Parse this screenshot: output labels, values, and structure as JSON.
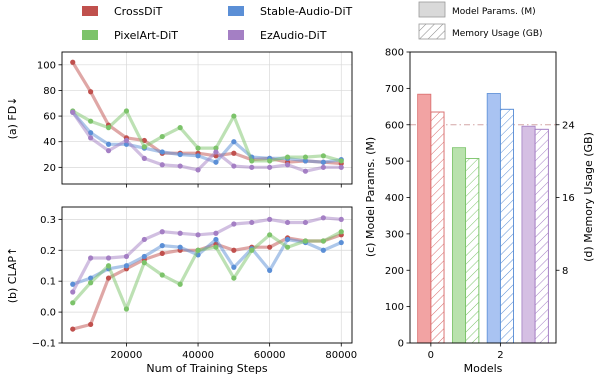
{
  "legend_left": [
    {
      "name": "CrossDiT",
      "color": "#c0504d"
    },
    {
      "name": "Stable-Audio-DiT",
      "color": "#5b8fd6"
    },
    {
      "name": "PixelArt-DiT",
      "color": "#7cc36a"
    },
    {
      "name": "EzAudio-DiT",
      "color": "#a47fc4"
    }
  ],
  "legend_right": [
    {
      "label": "Model Params. (M)",
      "pattern": "solid"
    },
    {
      "label": "Memory Usage (GB)",
      "pattern": "hatched"
    }
  ],
  "chart_data": [
    {
      "type": "line",
      "ylabel": "(a) FD↓",
      "xlabel": "",
      "xlim": [
        2000,
        83000
      ],
      "ylim": [
        7,
        110
      ],
      "yticks": [
        20,
        40,
        60,
        80,
        100
      ],
      "xticks": [
        20000,
        40000,
        60000,
        80000
      ],
      "x": [
        5000,
        10000,
        15000,
        20000,
        25000,
        30000,
        35000,
        40000,
        45000,
        50000,
        55000,
        60000,
        65000,
        70000,
        75000,
        80000
      ],
      "series": [
        {
          "name": "CrossDiT",
          "color": "#c0504d",
          "values": [
            102,
            79,
            53,
            43,
            41,
            31,
            31,
            31,
            29,
            31,
            26,
            27,
            24,
            25,
            24,
            23
          ]
        },
        {
          "name": "Stable-Audio-DiT",
          "color": "#5b8fd6",
          "values": [
            63,
            47,
            38,
            38,
            35,
            32,
            30,
            29,
            24,
            40,
            28,
            27,
            27,
            25,
            24,
            26
          ]
        },
        {
          "name": "PixelArt-DiT",
          "color": "#7cc36a",
          "values": [
            64,
            56,
            51,
            64,
            36,
            44,
            51,
            35,
            35,
            60,
            25,
            25,
            28,
            28,
            29,
            25
          ]
        },
        {
          "name": "EzAudio-DiT",
          "color": "#a47fc4",
          "values": [
            63,
            43,
            33,
            41,
            27,
            22,
            21,
            18,
            32,
            21,
            20,
            20,
            22,
            17,
            20,
            20
          ]
        }
      ]
    },
    {
      "type": "line",
      "ylabel": "(b) CLAP↑",
      "xlabel": "Num of Training Steps",
      "xlim": [
        2000,
        83000
      ],
      "ylim": [
        -0.1,
        0.34
      ],
      "yticks": [
        -0.1,
        0.0,
        0.1,
        0.2,
        0.3
      ],
      "ytick_labels": [
        "−0.1",
        "0.0",
        "0.1",
        "0.2",
        "0.3"
      ],
      "xticks": [
        20000,
        40000,
        60000,
        80000
      ],
      "xtick_labels": [
        "20000",
        "40000",
        "60000",
        "80000"
      ],
      "x": [
        5000,
        10000,
        15000,
        20000,
        25000,
        30000,
        35000,
        40000,
        45000,
        50000,
        55000,
        60000,
        65000,
        70000,
        75000,
        80000
      ],
      "series": [
        {
          "name": "CrossDiT",
          "color": "#c0504d",
          "values": [
            -0.055,
            -0.04,
            0.11,
            0.14,
            0.17,
            0.19,
            0.2,
            0.2,
            0.22,
            0.2,
            0.21,
            0.21,
            0.24,
            0.23,
            0.23,
            0.25
          ]
        },
        {
          "name": "Stable-Audio-DiT",
          "color": "#5b8fd6",
          "values": [
            0.09,
            0.11,
            0.14,
            0.15,
            0.18,
            0.215,
            0.21,
            0.185,
            0.235,
            0.145,
            0.205,
            0.135,
            0.235,
            0.225,
            0.2,
            0.225
          ]
        },
        {
          "name": "PixelArt-DiT",
          "color": "#7cc36a",
          "values": [
            0.03,
            0.095,
            0.15,
            0.01,
            0.16,
            0.12,
            0.09,
            0.2,
            0.21,
            0.11,
            0.2,
            0.25,
            0.21,
            0.23,
            0.23,
            0.26
          ]
        },
        {
          "name": "EzAudio-DiT",
          "color": "#a47fc4",
          "values": [
            0.065,
            0.175,
            0.175,
            0.18,
            0.235,
            0.26,
            0.255,
            0.25,
            0.255,
            0.285,
            0.29,
            0.3,
            0.29,
            0.29,
            0.305,
            0.3
          ]
        }
      ]
    },
    {
      "type": "bar",
      "xlabel": "Models",
      "ylabel": "(c) Model Params. (M)",
      "ylabel_right": "(d) Memory Usage (GB)",
      "ylim": [
        0,
        800
      ],
      "yticks": [
        0,
        100,
        200,
        300,
        400,
        500,
        600,
        700,
        800
      ],
      "ylim_right": [
        0,
        32
      ],
      "yticks_right": [
        8,
        16,
        24
      ],
      "xticks": [
        0,
        2
      ],
      "reference_line_gb": 24,
      "categories": [
        "CrossDiT",
        "PixelArt-DiT",
        "Stable-Audio-DiT",
        "EzAudio-DiT"
      ],
      "colors": [
        "#f2a3a3",
        "#b9e2ad",
        "#a9c3f2",
        "#d5bfe3"
      ],
      "edge_colors": [
        "#d96c6c",
        "#7cc36a",
        "#5b8fd6",
        "#a47fc4"
      ],
      "series": [
        {
          "name": "Model Params. (M)",
          "values": [
            684,
            537,
            686,
            596
          ]
        },
        {
          "name": "Memory Usage (GB)",
          "values": [
            25.4,
            20.3,
            25.7,
            23.5
          ]
        }
      ]
    }
  ]
}
